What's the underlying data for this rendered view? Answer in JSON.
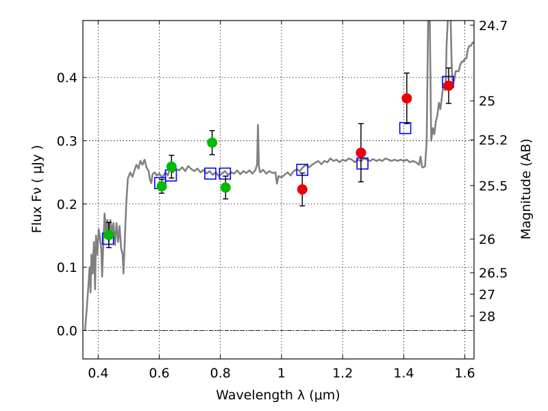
{
  "chart_data": {
    "type": "scatter",
    "title": "",
    "xlabel": "Wavelength  λ (μm)",
    "ylabel": "Flux  Fν  ( μJy )",
    "y2label": "Magnitude (AB)",
    "xlim": [
      0.35,
      1.63
    ],
    "ylim": [
      -0.045,
      0.49
    ],
    "grid": true,
    "x_ticks": [
      {
        "value": 0.4,
        "label": "0.4"
      },
      {
        "value": 0.6,
        "label": "0.6"
      },
      {
        "value": 0.8,
        "label": "0.8"
      },
      {
        "value": 1.0,
        "label": "1"
      },
      {
        "value": 1.2,
        "label": "1.2"
      },
      {
        "value": 1.4,
        "label": "1.4"
      },
      {
        "value": 1.6,
        "label": "1.6"
      }
    ],
    "y_ticks": [
      {
        "value": 0.0,
        "label": "0.0"
      },
      {
        "value": 0.1,
        "label": "0.1"
      },
      {
        "value": 0.2,
        "label": "0.2"
      },
      {
        "value": 0.3,
        "label": "0.3"
      },
      {
        "value": 0.4,
        "label": "0.4"
      }
    ],
    "mag_ticks": [
      {
        "flux": 0.4826,
        "label": "24.7"
      },
      {
        "flux": 0.3631,
        "label": "25"
      },
      {
        "flux": 0.3013,
        "label": "25.2"
      },
      {
        "flux": 0.2291,
        "label": "25.5"
      },
      {
        "flux": 0.1445,
        "label": "26"
      },
      {
        "flux": 0.0912,
        "label": "26.5"
      },
      {
        "flux": 0.0575,
        "label": "27"
      },
      {
        "flux": 0.0229,
        "label": "28"
      }
    ],
    "colors": {
      "sed": "#808080",
      "model_box": "#0000ff",
      "green": "#00bb00",
      "red": "#ee0000",
      "errorbar": "#000000",
      "zero_line": "#000000"
    },
    "series": [
      {
        "name": "model SED",
        "style": "line",
        "points": [
          [
            0.357,
            0.0
          ],
          [
            0.362,
            0.03
          ],
          [
            0.368,
            0.07
          ],
          [
            0.372,
            0.1
          ],
          [
            0.375,
            0.06
          ],
          [
            0.378,
            0.12
          ],
          [
            0.382,
            0.09
          ],
          [
            0.386,
            0.14
          ],
          [
            0.39,
            0.065
          ],
          [
            0.393,
            0.15
          ],
          [
            0.397,
            0.12
          ],
          [
            0.402,
            0.16
          ],
          [
            0.406,
            0.145
          ],
          [
            0.41,
            0.13
          ],
          [
            0.413,
            0.085
          ],
          [
            0.417,
            0.14
          ],
          [
            0.421,
            0.185
          ],
          [
            0.426,
            0.15
          ],
          [
            0.43,
            0.175
          ],
          [
            0.435,
            0.14
          ],
          [
            0.44,
            0.175
          ],
          [
            0.445,
            0.155
          ],
          [
            0.45,
            0.17
          ],
          [
            0.455,
            0.135
          ],
          [
            0.46,
            0.17
          ],
          [
            0.465,
            0.14
          ],
          [
            0.47,
            0.165
          ],
          [
            0.475,
            0.13
          ],
          [
            0.48,
            0.12
          ],
          [
            0.483,
            0.09
          ],
          [
            0.487,
            0.14
          ],
          [
            0.492,
            0.2
          ],
          [
            0.497,
            0.24
          ],
          [
            0.505,
            0.25
          ],
          [
            0.512,
            0.243
          ],
          [
            0.52,
            0.255
          ],
          [
            0.525,
            0.262
          ],
          [
            0.532,
            0.256
          ],
          [
            0.538,
            0.268
          ],
          [
            0.545,
            0.262
          ],
          [
            0.552,
            0.27
          ],
          [
            0.558,
            0.258
          ],
          [
            0.565,
            0.252
          ],
          [
            0.57,
            0.238
          ],
          [
            0.574,
            0.233
          ],
          [
            0.578,
            0.247
          ],
          [
            0.585,
            0.25
          ],
          [
            0.592,
            0.245
          ],
          [
            0.6,
            0.248
          ],
          [
            0.61,
            0.242
          ],
          [
            0.62,
            0.25
          ],
          [
            0.628,
            0.245
          ],
          [
            0.635,
            0.256
          ],
          [
            0.645,
            0.25
          ],
          [
            0.655,
            0.256
          ],
          [
            0.665,
            0.253
          ],
          [
            0.675,
            0.258
          ],
          [
            0.685,
            0.252
          ],
          [
            0.695,
            0.26
          ],
          [
            0.705,
            0.255
          ],
          [
            0.715,
            0.252
          ],
          [
            0.725,
            0.256
          ],
          [
            0.735,
            0.25
          ],
          [
            0.745,
            0.254
          ],
          [
            0.755,
            0.248
          ],
          [
            0.765,
            0.252
          ],
          [
            0.775,
            0.246
          ],
          [
            0.785,
            0.25
          ],
          [
            0.795,
            0.244
          ],
          [
            0.805,
            0.248
          ],
          [
            0.815,
            0.252
          ],
          [
            0.825,
            0.246
          ],
          [
            0.835,
            0.25
          ],
          [
            0.845,
            0.248
          ],
          [
            0.855,
            0.253
          ],
          [
            0.865,
            0.247
          ],
          [
            0.875,
            0.252
          ],
          [
            0.885,
            0.249
          ],
          [
            0.895,
            0.253
          ],
          [
            0.905,
            0.248
          ],
          [
            0.915,
            0.254
          ],
          [
            0.92,
            0.262
          ],
          [
            0.923,
            0.325
          ],
          [
            0.926,
            0.26
          ],
          [
            0.93,
            0.25
          ],
          [
            0.94,
            0.254
          ],
          [
            0.95,
            0.248
          ],
          [
            0.96,
            0.252
          ],
          [
            0.97,
            0.249
          ],
          [
            0.98,
            0.25
          ],
          [
            0.985,
            0.232
          ],
          [
            0.99,
            0.244
          ],
          [
            1.0,
            0.242
          ],
          [
            1.01,
            0.246
          ],
          [
            1.02,
            0.25
          ],
          [
            1.03,
            0.245
          ],
          [
            1.04,
            0.252
          ],
          [
            1.05,
            0.255
          ],
          [
            1.06,
            0.252
          ],
          [
            1.07,
            0.258
          ],
          [
            1.08,
            0.262
          ],
          [
            1.09,
            0.258
          ],
          [
            1.1,
            0.262
          ],
          [
            1.11,
            0.265
          ],
          [
            1.12,
            0.268
          ],
          [
            1.13,
            0.263
          ],
          [
            1.14,
            0.268
          ],
          [
            1.15,
            0.266
          ],
          [
            1.16,
            0.272
          ],
          [
            1.17,
            0.268
          ],
          [
            1.18,
            0.27
          ],
          [
            1.19,
            0.266
          ],
          [
            1.2,
            0.27
          ],
          [
            1.21,
            0.268
          ],
          [
            1.22,
            0.272
          ],
          [
            1.23,
            0.27
          ],
          [
            1.24,
            0.266
          ],
          [
            1.25,
            0.27
          ],
          [
            1.26,
            0.268
          ],
          [
            1.27,
            0.272
          ],
          [
            1.28,
            0.27
          ],
          [
            1.29,
            0.268
          ],
          [
            1.3,
            0.271
          ],
          [
            1.31,
            0.268
          ],
          [
            1.32,
            0.27
          ],
          [
            1.33,
            0.268
          ],
          [
            1.34,
            0.272
          ],
          [
            1.35,
            0.27
          ],
          [
            1.36,
            0.268
          ],
          [
            1.37,
            0.27
          ],
          [
            1.38,
            0.268
          ],
          [
            1.39,
            0.27
          ],
          [
            1.4,
            0.268
          ],
          [
            1.41,
            0.27
          ],
          [
            1.42,
            0.266
          ],
          [
            1.43,
            0.268
          ],
          [
            1.44,
            0.266
          ],
          [
            1.45,
            0.262
          ],
          [
            1.455,
            0.275
          ],
          [
            1.46,
            0.258
          ],
          [
            1.465,
            0.258
          ],
          [
            1.47,
            0.26
          ],
          [
            1.475,
            0.3
          ],
          [
            1.48,
            0.5
          ],
          [
            1.485,
            0.5
          ],
          [
            1.49,
            0.3
          ],
          [
            1.495,
            0.32
          ],
          [
            1.5,
            0.31
          ],
          [
            1.505,
            0.33
          ],
          [
            1.51,
            0.34
          ],
          [
            1.515,
            0.36
          ],
          [
            1.52,
            0.35
          ],
          [
            1.525,
            0.37
          ],
          [
            1.53,
            0.39
          ],
          [
            1.535,
            0.38
          ],
          [
            1.538,
            0.4
          ],
          [
            1.54,
            0.45
          ],
          [
            1.545,
            0.5
          ],
          [
            1.553,
            0.5
          ],
          [
            1.557,
            0.42
          ],
          [
            1.56,
            0.39
          ],
          [
            1.565,
            0.395
          ],
          [
            1.57,
            0.41
          ],
          [
            1.575,
            0.41
          ],
          [
            1.58,
            0.41
          ],
          [
            1.585,
            0.42
          ],
          [
            1.59,
            0.425
          ],
          [
            1.595,
            0.425
          ],
          [
            1.6,
            0.43
          ],
          [
            1.605,
            0.43
          ],
          [
            1.61,
            0.445
          ],
          [
            1.615,
            0.45
          ],
          [
            1.62,
            0.45
          ],
          [
            1.625,
            0.455
          ],
          [
            1.63,
            0.455
          ]
        ]
      },
      {
        "name": "model photometry",
        "style": "open-square",
        "x": [
          0.432,
          0.603,
          0.638,
          0.767,
          0.815,
          1.068,
          1.265,
          1.405,
          1.545
        ],
        "y": [
          0.145,
          0.233,
          0.245,
          0.248,
          0.248,
          0.254,
          0.264,
          0.32,
          0.393
        ]
      },
      {
        "name": "observed (green)",
        "style": "filled-circle",
        "x": [
          0.435,
          0.608,
          0.64,
          0.773,
          0.817
        ],
        "y": [
          0.151,
          0.228,
          0.259,
          0.297,
          0.226
        ],
        "yerr": [
          0.02,
          0.011,
          0.018,
          0.019,
          0.018
        ]
      },
      {
        "name": "observed (red)",
        "style": "filled-circle",
        "x": [
          1.068,
          1.26,
          1.41,
          1.547
        ],
        "y": [
          0.223,
          0.281,
          0.367,
          0.387
        ],
        "yerr": [
          0.026,
          0.046,
          0.04,
          0.028
        ]
      }
    ]
  }
}
